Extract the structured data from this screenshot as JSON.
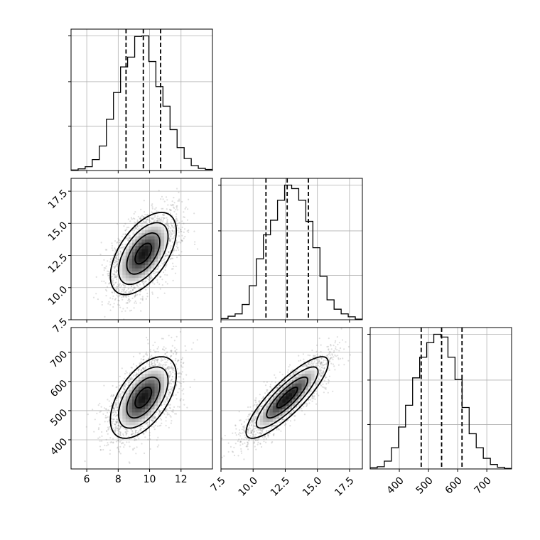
{
  "chart_data": {
    "type": "corner",
    "grid": true,
    "colors": {
      "axes": "#000000",
      "grid": "#b0b0b0",
      "scatter": "#808080",
      "density_dark": "#000000"
    },
    "parameters": [
      {
        "range": [
          5.0,
          14.0
        ],
        "ticks": [
          6,
          8,
          10,
          12
        ],
        "tick_labels": [
          "6",
          "8",
          "10",
          "12"
        ],
        "mean": 9.6,
        "sd": 1.05,
        "quantiles": [
          8.5,
          9.6,
          10.7
        ],
        "hist": {
          "bin_edges": [
            5.0,
            5.45,
            5.9,
            6.35,
            6.8,
            7.25,
            7.7,
            8.15,
            8.6,
            9.05,
            9.5,
            9.95,
            10.4,
            10.85,
            11.3,
            11.75,
            12.2,
            12.65,
            13.1,
            13.55,
            14.0
          ],
          "counts": [
            1,
            3,
            7,
            20,
            45,
            94,
            143,
            190,
            208,
            246,
            247,
            200,
            154,
            118,
            75,
            42,
            22,
            9,
            4,
            2
          ]
        }
      },
      {
        "range": [
          7.5,
          18.5
        ],
        "ticks": [
          7.5,
          10.0,
          12.5,
          15.0,
          17.5
        ],
        "tick_labels": [
          "7.5",
          "10.0",
          "12.5",
          "15.0",
          "17.5"
        ],
        "mean": 12.65,
        "sd": 1.6,
        "quantiles": [
          11.0,
          12.65,
          14.3
        ],
        "hist": {
          "bin_edges": [
            7.5,
            8.05,
            8.6,
            9.15,
            9.7,
            10.25,
            10.8,
            11.35,
            11.9,
            12.45,
            13.0,
            13.55,
            14.1,
            14.65,
            15.2,
            15.75,
            16.3,
            16.85,
            17.4,
            17.95,
            18.5
          ],
          "counts": [
            2,
            6,
            10,
            26,
            58,
            104,
            145,
            170,
            204,
            230,
            224,
            204,
            168,
            123,
            74,
            34,
            18,
            10,
            5,
            1
          ]
        }
      },
      {
        "range": [
          300,
          785
        ],
        "ticks": [
          400,
          500,
          600,
          700
        ],
        "tick_labels": [
          "400",
          "500",
          "600",
          "700"
        ],
        "mean": 545,
        "sd": 70,
        "quantiles": [
          475,
          545,
          615
        ],
        "hist": {
          "bin_edges": [
            300,
            324.25,
            348.5,
            372.75,
            397,
            421.25,
            445.5,
            469.75,
            494,
            518.25,
            542.5,
            566.75,
            591,
            615.25,
            639.5,
            663.75,
            688,
            712.25,
            736.5,
            760.75,
            785
          ],
          "counts": [
            2,
            4,
            14,
            38,
            75,
            114,
            163,
            200,
            226,
            241,
            236,
            200,
            160,
            110,
            63,
            38,
            19,
            8,
            3,
            1
          ]
        }
      }
    ],
    "pairs": [
      {
        "x": 0,
        "y": 1,
        "rho": 0.55
      },
      {
        "x": 0,
        "y": 2,
        "rho": 0.55
      },
      {
        "x": 1,
        "y": 2,
        "rho": 0.85
      }
    ],
    "contour_levels_sigma": [
      0.5,
      1.0,
      1.5,
      2.0
    ]
  }
}
